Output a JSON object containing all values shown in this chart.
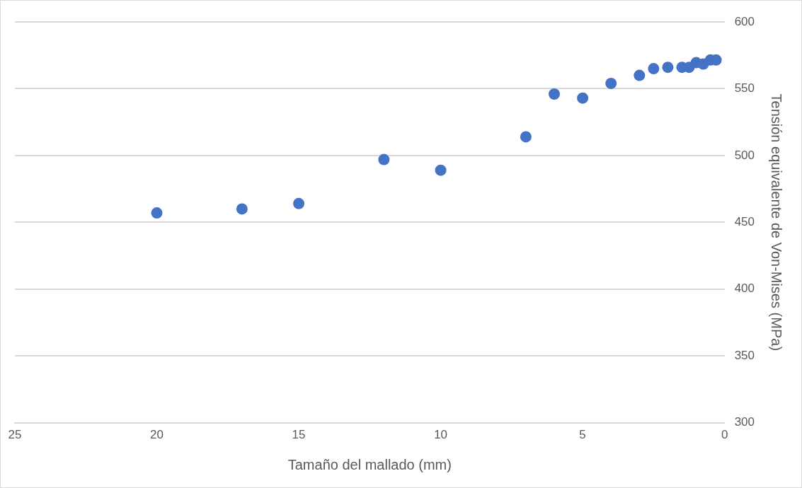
{
  "chart_data": {
    "type": "scatter",
    "xlabel": "Tamaño del mallado (mm)",
    "ylabel": "Tensión equivalente de Von-Mises (MPa)",
    "x": [
      20,
      17,
      15,
      12,
      10,
      7,
      6,
      5,
      4,
      3,
      2.5,
      2,
      1.5,
      1.25,
      1,
      0.75,
      0.5,
      0.3
    ],
    "series": [
      {
        "color": "#4472c4",
        "values": [
          457,
          460,
          464,
          497,
          489,
          514,
          546,
          543,
          554,
          560,
          565,
          566,
          566,
          566,
          569.5,
          568.5,
          571.5,
          571.5
        ]
      }
    ],
    "xlim": [
      25,
      0
    ],
    "xticks": [
      25,
      20,
      15,
      10,
      5,
      0
    ],
    "ylim": [
      300,
      600
    ],
    "yticks": [
      300,
      350,
      400,
      450,
      500,
      550,
      600
    ],
    "grid": "y",
    "legend": false,
    "marker": "circle"
  }
}
